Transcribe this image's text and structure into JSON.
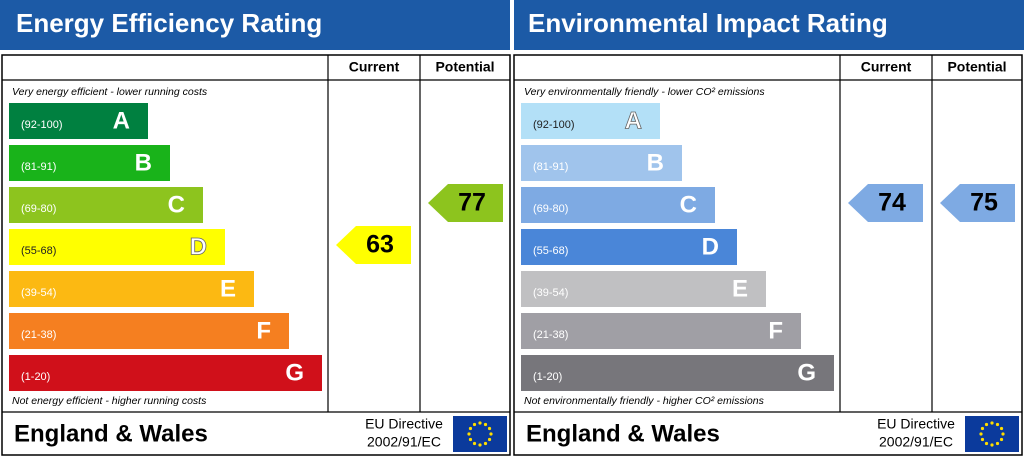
{
  "panels": [
    {
      "title": "Energy Efficiency Rating",
      "headers": [
        "Current",
        "Potential"
      ],
      "top_note": "Very energy efficient - lower running costs",
      "bottom_note": "Not energy efficient - higher running costs",
      "bands": [
        {
          "range": "(92-100)",
          "letter": "A",
          "color": "#008040"
        },
        {
          "range": "(81-91)",
          "letter": "B",
          "color": "#19b31a"
        },
        {
          "range": "(69-80)",
          "letter": "C",
          "color": "#8dc41e"
        },
        {
          "range": "(55-68)",
          "letter": "D",
          "color": "#ffff00"
        },
        {
          "range": "(39-54)",
          "letter": "E",
          "color": "#fcb912"
        },
        {
          "range": "(21-38)",
          "letter": "F",
          "color": "#f57f20"
        },
        {
          "range": "(1-20)",
          "letter": "G",
          "color": "#d0101a"
        }
      ],
      "current": 63,
      "potential": 77,
      "footer": "England & Wales",
      "directive": [
        "EU Directive",
        "2002/91/EC"
      ]
    },
    {
      "title": "Environmental Impact Rating",
      "headers": [
        "Current",
        "Potential"
      ],
      "top_note": "Very environmentally friendly - lower CO² emissions",
      "bottom_note": "Not environmentally friendly - higher CO² emissions",
      "bands": [
        {
          "range": "(92-100)",
          "letter": "A",
          "color": "#b3e0f7"
        },
        {
          "range": "(81-91)",
          "letter": "B",
          "color": "#a0c4ec"
        },
        {
          "range": "(69-80)",
          "letter": "C",
          "color": "#7eaae3"
        },
        {
          "range": "(55-68)",
          "letter": "D",
          "color": "#4a86d8"
        },
        {
          "range": "(39-54)",
          "letter": "E",
          "color": "#c0c0c2"
        },
        {
          "range": "(21-38)",
          "letter": "F",
          "color": "#a09fa5"
        },
        {
          "range": "(1-20)",
          "letter": "G",
          "color": "#77767b"
        }
      ],
      "current": 74,
      "potential": 75,
      "footer": "England & Wales",
      "directive": [
        "EU Directive",
        "2002/91/EC"
      ]
    }
  ]
}
